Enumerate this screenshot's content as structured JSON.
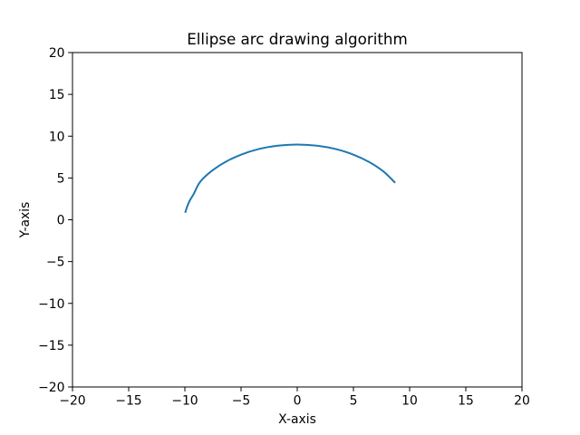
{
  "chart_data": {
    "type": "line",
    "title": "Ellipse arc drawing algorithm",
    "xlabel": "X-axis",
    "ylabel": "Y-axis",
    "xlim": [
      -20,
      20
    ],
    "ylim": [
      -20,
      20
    ],
    "xticks": [
      -20,
      -15,
      -10,
      -5,
      0,
      5,
      10,
      15,
      20
    ],
    "yticks": [
      -20,
      -15,
      -10,
      -5,
      0,
      5,
      10,
      15,
      20
    ],
    "xtick_labels": [
      "−20",
      "−15",
      "−10",
      "−5",
      "0",
      "5",
      "10",
      "15",
      "20"
    ],
    "ytick_labels": [
      "−20",
      "−15",
      "−10",
      "−5",
      "0",
      "5",
      "10",
      "15",
      "20"
    ],
    "grid": false,
    "series": [
      {
        "color": "#1f77b4",
        "x": [
          -9.95,
          -9.8,
          -9.55,
          -9.2,
          -8.66,
          -7.66,
          -6.43,
          -5.0,
          -3.42,
          -1.74,
          0.0,
          1.74,
          3.42,
          5.0,
          6.43,
          7.66,
          8.66
        ],
        "y": [
          0.94,
          1.56,
          2.33,
          3.12,
          4.5,
          5.79,
          6.89,
          7.79,
          8.46,
          8.86,
          9.0,
          8.86,
          8.46,
          7.79,
          6.89,
          5.79,
          4.5
        ]
      }
    ]
  }
}
